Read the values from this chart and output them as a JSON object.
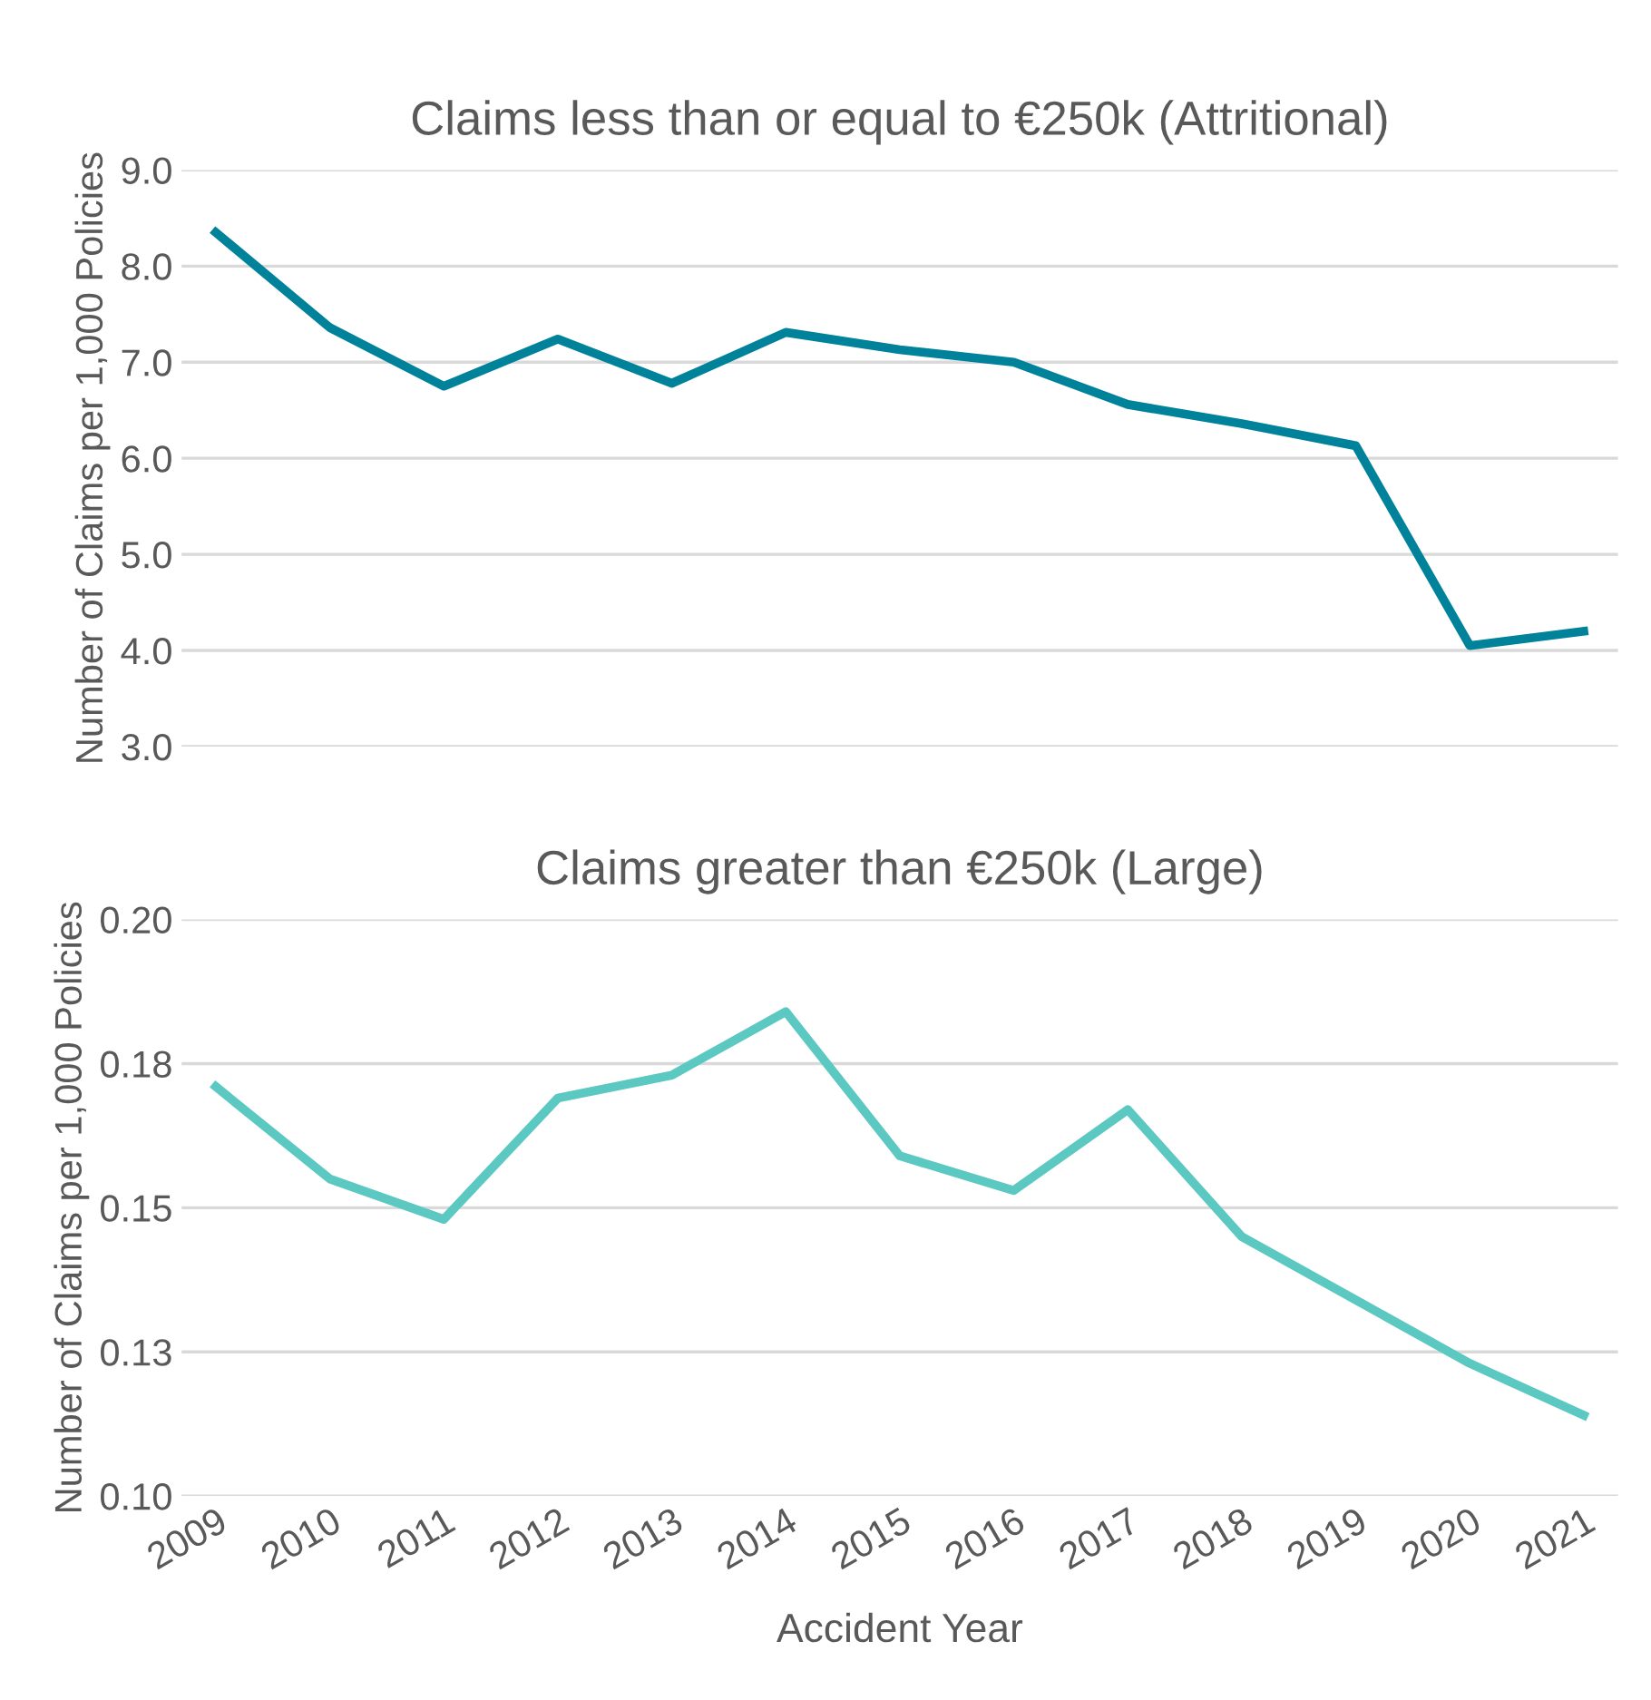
{
  "chart_data": [
    {
      "type": "line",
      "title": "Claims less than or equal to €250k (Attritional)",
      "ylabel": "Number of Claims per 1,000 Policies",
      "categories": [
        "2009",
        "2010",
        "2011",
        "2012",
        "2013",
        "2014",
        "2015",
        "2016",
        "2017",
        "2018",
        "2019",
        "2020",
        "2021"
      ],
      "series": [
        {
          "color": "#00829b",
          "values": [
            8.35,
            7.36,
            6.75,
            7.24,
            6.78,
            7.31,
            7.13,
            7.0,
            6.56,
            6.36,
            6.13,
            4.05,
            4.2
          ]
        }
      ],
      "ylim": [
        3,
        9
      ],
      "yticks": [
        {
          "value": 3,
          "label": "3.0"
        },
        {
          "value": 4,
          "label": "4.0"
        },
        {
          "value": 5,
          "label": "5.0"
        },
        {
          "value": 6,
          "label": "6.0"
        },
        {
          "value": 7,
          "label": "7.0"
        },
        {
          "value": 8,
          "label": "8.0"
        },
        {
          "value": 9,
          "label": "9.0"
        }
      ],
      "grid": "y",
      "tick_labels": "y",
      "marker": "none",
      "line_style": "solid"
    },
    {
      "type": "line",
      "title": "Claims greater than €250k (Large)",
      "ylabel": "Number of Claims per 1,000 Policies",
      "xlabel": "Accident Year",
      "categories": [
        "2009",
        "2010",
        "2011",
        "2012",
        "2013",
        "2014",
        "2015",
        "2016",
        "2017",
        "2018",
        "2019",
        "2020",
        "2021"
      ],
      "series": [
        {
          "color": "#5cc8c2",
          "values": [
            0.171,
            0.155,
            0.148,
            0.169,
            0.173,
            0.184,
            0.159,
            0.153,
            0.167,
            0.145,
            0.134,
            0.123,
            0.114
          ]
        }
      ],
      "ylim": [
        0.1,
        0.2
      ],
      "yticks": [
        {
          "value": 0.1,
          "label": "0.10"
        },
        {
          "value": 0.125,
          "label": "0.13"
        },
        {
          "value": 0.15,
          "label": "0.15"
        },
        {
          "value": 0.175,
          "label": "0.18"
        },
        {
          "value": 0.2,
          "label": "0.20"
        }
      ],
      "grid": "y",
      "marker": "none",
      "line_style": "solid"
    }
  ]
}
